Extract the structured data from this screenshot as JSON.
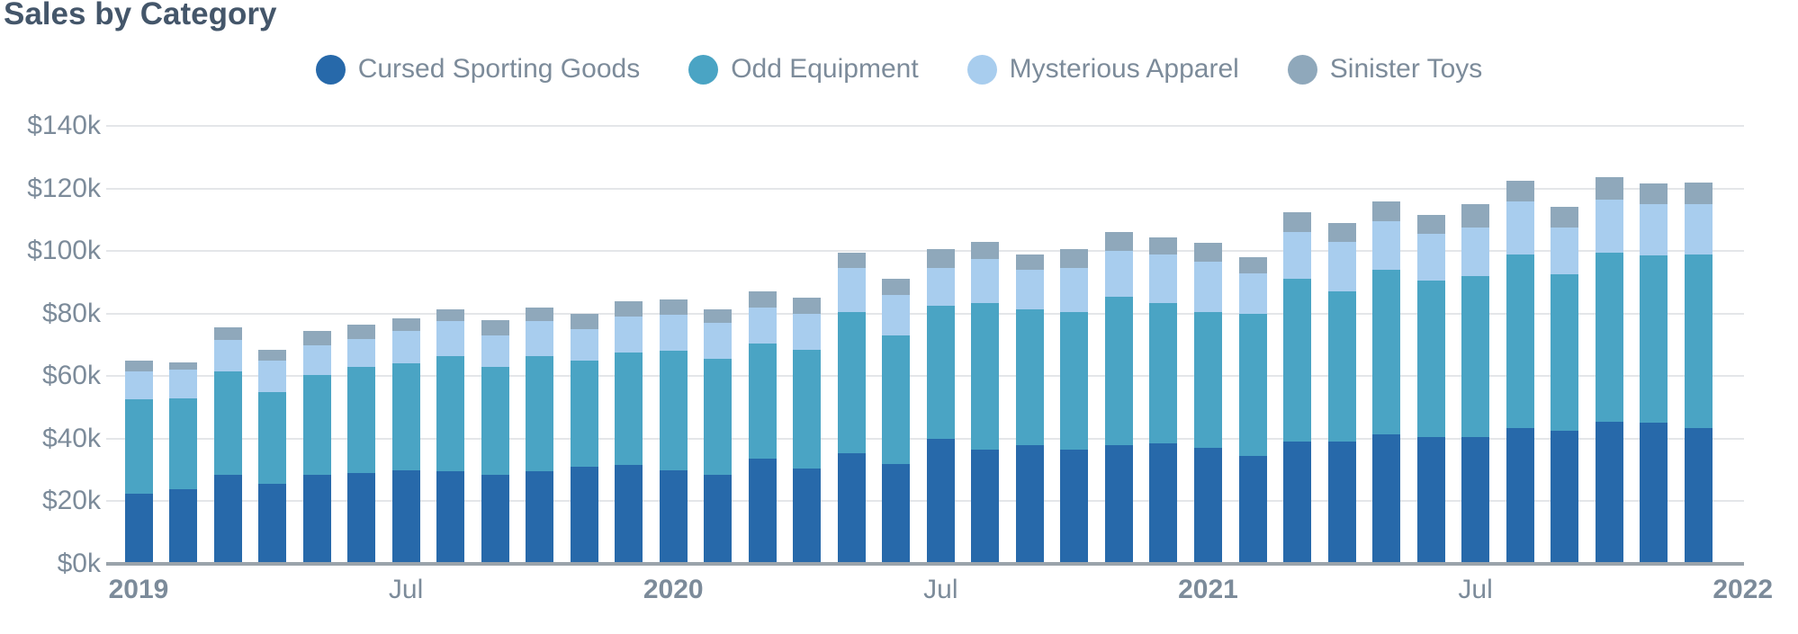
{
  "chart_data": {
    "type": "bar",
    "stacked": true,
    "title": "Sales by Category",
    "value_unit": "$k",
    "categories": [
      "Jan 2019",
      "Feb 2019",
      "Mar 2019",
      "Apr 2019",
      "May 2019",
      "Jun 2019",
      "Jul 2019",
      "Aug 2019",
      "Sep 2019",
      "Oct 2019",
      "Nov 2019",
      "Dec 2019",
      "Jan 2020",
      "Feb 2020",
      "Mar 2020",
      "Apr 2020",
      "May 2020",
      "Jun 2020",
      "Jul 2020",
      "Aug 2020",
      "Sep 2020",
      "Oct 2020",
      "Nov 2020",
      "Dec 2020",
      "Jan 2021",
      "Feb 2021",
      "Mar 2021",
      "Apr 2021",
      "May 2021",
      "Jun 2021",
      "Jul 2021",
      "Aug 2021",
      "Sep 2021",
      "Oct 2021",
      "Nov 2021",
      "Dec 2021"
    ],
    "series": [
      {
        "name": "Cursed Sporting Goods",
        "color": "#2769aa",
        "values": [
          22.5,
          24,
          28.5,
          25.5,
          28.5,
          29,
          30,
          29.5,
          28.5,
          29.5,
          31,
          31.5,
          30,
          28.5,
          33.5,
          30.5,
          35.5,
          32,
          40,
          36.5,
          38,
          36.5,
          38,
          38.5,
          37,
          34.5,
          39,
          39,
          41.5,
          40.5,
          40.5,
          43.5,
          42.5,
          45.5,
          45,
          43.5
        ]
      },
      {
        "name": "Odd Equipment",
        "color": "#4aa4c4",
        "values": [
          30,
          29,
          33,
          29.5,
          32,
          34,
          34,
          37,
          34.5,
          37,
          34,
          36,
          38,
          37,
          37,
          38,
          45,
          41,
          42.5,
          47,
          43.5,
          44,
          47.5,
          45,
          43.5,
          45.5,
          52,
          48,
          52.5,
          50,
          51.5,
          55.5,
          50,
          54,
          53.5,
          55.5
        ]
      },
      {
        "name": "Mysterious Apparel",
        "color": "#a8cdee",
        "values": [
          9,
          9,
          10,
          10,
          9.5,
          9,
          10.5,
          11,
          10,
          11,
          10,
          11.5,
          11.5,
          11.5,
          11.5,
          11.5,
          14,
          13,
          12,
          14,
          12.5,
          14,
          14.5,
          15.5,
          16,
          13,
          15,
          16,
          15.5,
          15,
          15.5,
          17,
          15,
          17,
          16.5,
          16
        ]
      },
      {
        "name": "Sinister Toys",
        "color": "#8fa8bb",
        "values": [
          3.5,
          2.5,
          4,
          3.5,
          4.5,
          4.5,
          4,
          4,
          5,
          4.5,
          5,
          5,
          5,
          4.5,
          5,
          5,
          5,
          5,
          6,
          5.5,
          5,
          6,
          6,
          5.5,
          6,
          5,
          6.5,
          6,
          6.5,
          6,
          7.5,
          6.5,
          6.5,
          7,
          6.5,
          7
        ]
      }
    ],
    "ylim": [
      0,
      140
    ],
    "y_ticks": [
      {
        "value": 0,
        "label": "$0k"
      },
      {
        "value": 20,
        "label": "$20k"
      },
      {
        "value": 40,
        "label": "$40k"
      },
      {
        "value": 60,
        "label": "$60k"
      },
      {
        "value": 80,
        "label": "$80k"
      },
      {
        "value": 100,
        "label": "$100k"
      },
      {
        "value": 120,
        "label": "$120k"
      },
      {
        "value": 140,
        "label": "$140k"
      }
    ],
    "x_ticks": [
      {
        "slot": 0,
        "label": "2019",
        "bold": true
      },
      {
        "slot": 6,
        "label": "Jul",
        "bold": false
      },
      {
        "slot": 12,
        "label": "2020",
        "bold": true
      },
      {
        "slot": 18,
        "label": "Jul",
        "bold": false
      },
      {
        "slot": 24,
        "label": "2021",
        "bold": true
      },
      {
        "slot": 30,
        "label": "Jul",
        "bold": false
      },
      {
        "slot": 36,
        "label": "2022",
        "bold": true
      }
    ],
    "grid": true,
    "legend_position": "top-center"
  },
  "styles": {
    "title_color": "#44566a",
    "tick_label_color": "#7c8b9a",
    "gridline_color": "#e4e6e9",
    "axisline_color": "#9aa3ab",
    "background": "#ffffff"
  }
}
